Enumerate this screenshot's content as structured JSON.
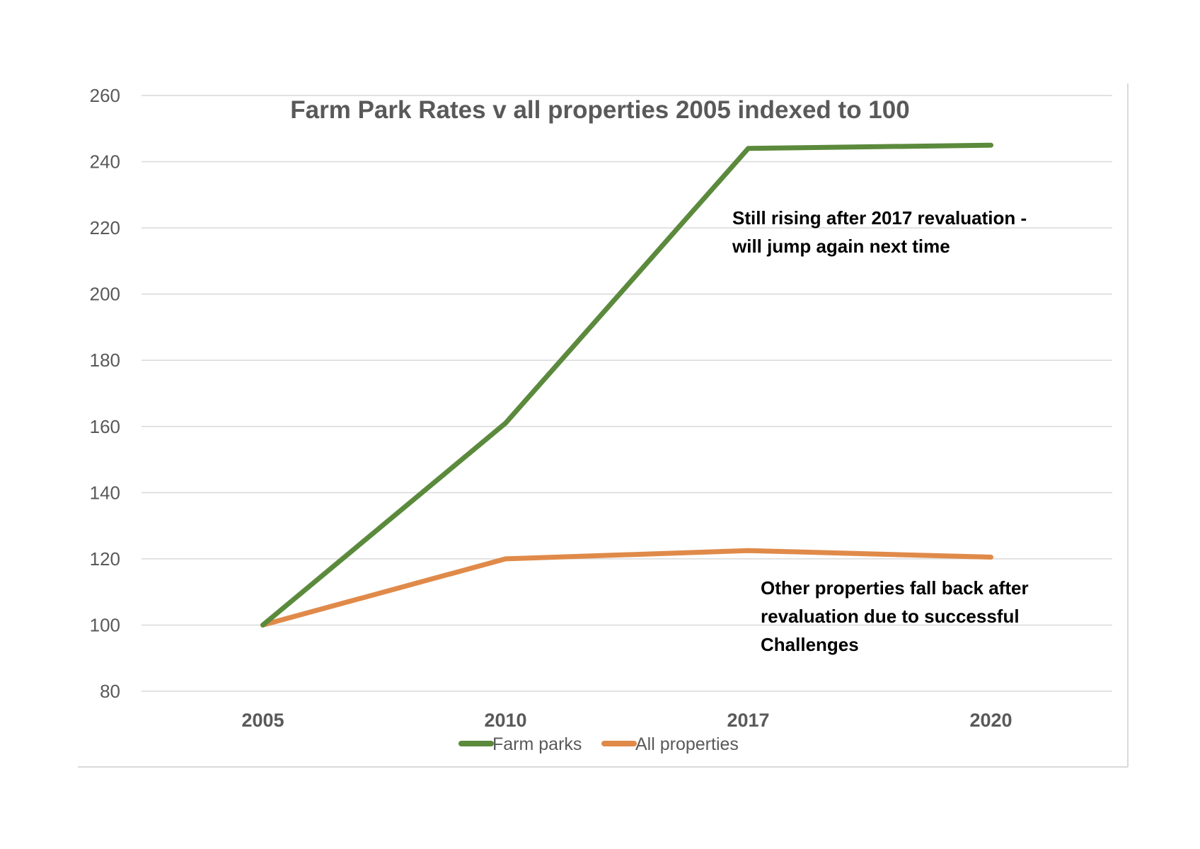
{
  "chart_data": {
    "type": "line",
    "title": "Farm Park Rates v all properties 2005 indexed to 100",
    "categories": [
      "2005",
      "2010",
      "2017",
      "2020"
    ],
    "series": [
      {
        "name": "Farm parks",
        "values": [
          100,
          161,
          244,
          245
        ],
        "color": "#5b8a3c"
      },
      {
        "name": "All properties",
        "values": [
          100,
          120,
          122.5,
          120.5
        ],
        "color": "#e08a4a"
      }
    ],
    "ylim": [
      80,
      260
    ],
    "yticks": [
      "80",
      "100",
      "120",
      "140",
      "160",
      "180",
      "200",
      "220",
      "240",
      "260"
    ],
    "grid": true,
    "legend": "bottom-center",
    "annotations": [
      {
        "lines": [
          "Still rising after 2017 revaluation -",
          "will jump again next time"
        ]
      },
      {
        "lines": [
          "Other properties fall back after",
          "revaluation due to successful",
          "Challenges"
        ]
      }
    ]
  }
}
